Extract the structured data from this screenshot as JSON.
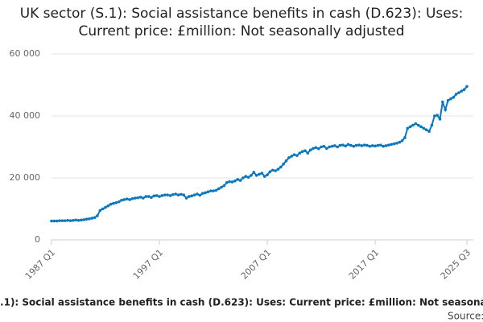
{
  "chart_data": {
    "type": "line",
    "title": "UK sector (S.1): Social assistance benefits in cash (D.623): Uses: Current price: £million: Not seasonally adjusted",
    "source": "Source:",
    "categories": [
      "1987 Q1",
      null,
      null,
      null,
      null,
      null,
      null,
      null,
      null,
      null,
      null,
      null,
      null,
      null,
      null,
      null,
      null,
      null,
      null,
      null,
      null,
      null,
      null,
      null,
      null,
      null,
      null,
      null,
      null,
      null,
      null,
      null,
      null,
      null,
      null,
      null,
      null,
      null,
      null,
      null,
      "1997 Q1",
      null,
      null,
      null,
      null,
      null,
      null,
      null,
      null,
      null,
      null,
      null,
      null,
      null,
      null,
      null,
      null,
      null,
      null,
      null,
      null,
      null,
      null,
      null,
      null,
      null,
      null,
      null,
      null,
      null,
      null,
      null,
      null,
      null,
      null,
      null,
      null,
      null,
      null,
      null,
      "2007 Q1",
      null,
      null,
      null,
      null,
      null,
      null,
      null,
      null,
      null,
      null,
      null,
      null,
      null,
      null,
      null,
      null,
      null,
      null,
      null,
      null,
      null,
      null,
      null,
      null,
      null,
      null,
      null,
      null,
      null,
      null,
      null,
      null,
      null,
      null,
      null,
      null,
      null,
      null,
      null,
      "2017 Q1",
      null,
      null,
      null,
      null,
      null,
      null,
      null,
      null,
      null,
      null,
      null,
      null,
      null,
      null,
      null,
      null,
      null,
      null,
      null,
      null,
      null,
      null,
      null,
      null,
      null,
      null,
      null,
      null,
      null,
      null,
      null,
      null,
      null,
      "2025 Q3"
    ],
    "series": [
      {
        "name": "UK sector (S.1): Social assistance benefits in cash (D.623): Uses: Current price: £million: Not seasonally adjusted",
        "color": "#0b78be",
        "values": [
          6100,
          6100,
          6100,
          6200,
          6200,
          6200,
          6300,
          6200,
          6300,
          6400,
          6300,
          6400,
          6500,
          6700,
          6800,
          7000,
          7200,
          7800,
          9500,
          10000,
          10500,
          11000,
          11500,
          11800,
          12000,
          12300,
          12800,
          13000,
          13200,
          13000,
          13300,
          13500,
          13600,
          13800,
          13500,
          14000,
          14000,
          13700,
          14200,
          14300,
          14000,
          14300,
          14500,
          14500,
          14300,
          14600,
          14800,
          14500,
          14700,
          14500,
          13500,
          14000,
          14200,
          14500,
          14800,
          14400,
          15000,
          15200,
          15500,
          15800,
          15800,
          16000,
          16500,
          17000,
          17500,
          18500,
          18800,
          18700,
          19000,
          19500,
          19200,
          20000,
          20500,
          20200,
          20800,
          21800,
          20800,
          21200,
          21500,
          20500,
          21000,
          22000,
          22500,
          22300,
          22800,
          23500,
          24500,
          25500,
          26500,
          27000,
          27500,
          27200,
          28000,
          28500,
          28800,
          28000,
          29000,
          29500,
          29800,
          29400,
          30000,
          30200,
          29500,
          30000,
          30200,
          30400,
          30000,
          30500,
          30600,
          30300,
          30800,
          30500,
          30200,
          30500,
          30600,
          30400,
          30600,
          30500,
          30200,
          30400,
          30300,
          30500,
          30600,
          30200,
          30400,
          30600,
          30800,
          31000,
          31200,
          31500,
          32000,
          33000,
          36000,
          36500,
          37000,
          37500,
          37000,
          36500,
          36000,
          35500,
          35000,
          37000,
          40000,
          40200,
          39000,
          44500,
          42000,
          45000,
          45500,
          46000,
          47000,
          47500,
          48000,
          48500,
          49500
        ]
      }
    ],
    "ylim": [
      0,
      60000
    ],
    "yticks": [
      0,
      {
        "value": 20000,
        "label": "20 000"
      },
      {
        "value": 40000,
        "label": "40 000"
      },
      {
        "value": 60000,
        "label": "60 000"
      }
    ],
    "grid": true
  }
}
